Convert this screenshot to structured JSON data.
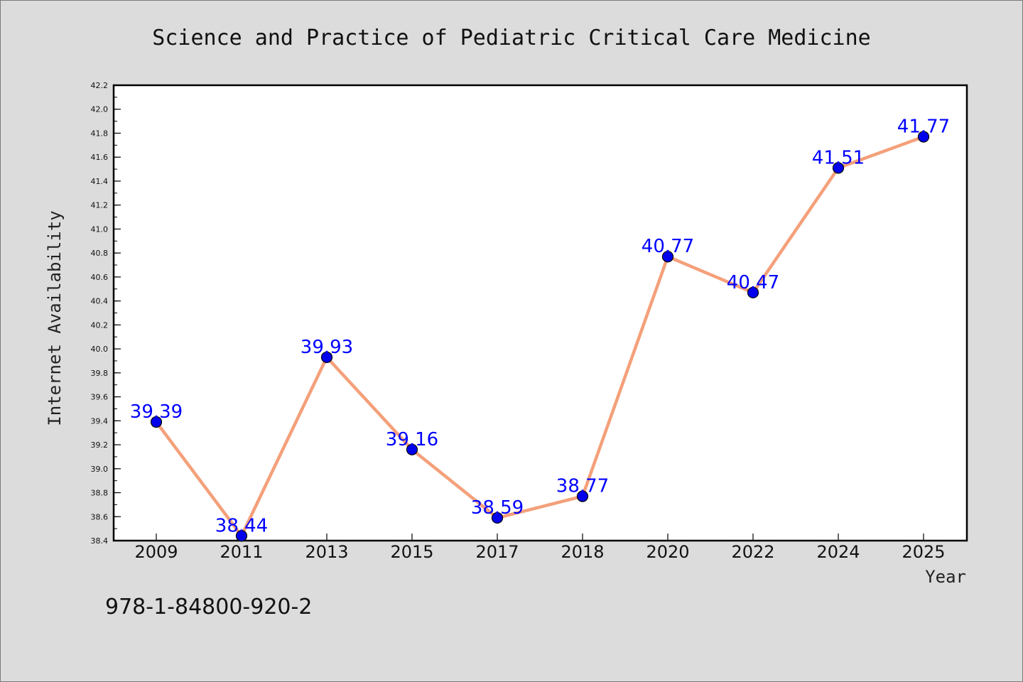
{
  "chart_data": {
    "type": "line",
    "title": "Science and Practice of Pediatric Critical Care Medicine",
    "xlabel": "Year",
    "ylabel": "Internet Availability",
    "categories": [
      "2009",
      "2011",
      "2013",
      "2015",
      "2017",
      "2018",
      "2020",
      "2022",
      "2024",
      "2025"
    ],
    "values": [
      39.39,
      38.44,
      39.93,
      39.16,
      38.59,
      38.77,
      40.77,
      40.47,
      41.51,
      41.77
    ],
    "data_labels": [
      "39.39",
      "38.44",
      "39.93",
      "39.16",
      "38.59",
      "38.77",
      "40.77",
      "40.47",
      "41.51",
      "41.77"
    ],
    "ylim": [
      38.4,
      42.2
    ],
    "yticks": [
      "38.4",
      "38.6",
      "38.8",
      "39.0",
      "39.2",
      "39.4",
      "39.6",
      "39.8",
      "40.0",
      "40.2",
      "40.4",
      "40.6",
      "40.8",
      "41.0",
      "41.2",
      "41.4",
      "41.6",
      "41.8",
      "42.0",
      "42.2"
    ],
    "grid": false,
    "line_color": "#f4a07a",
    "marker_color": "#0000ee",
    "label_color": "#0000ff"
  },
  "footer": {
    "isbn": "978-1-84800-920-2"
  }
}
